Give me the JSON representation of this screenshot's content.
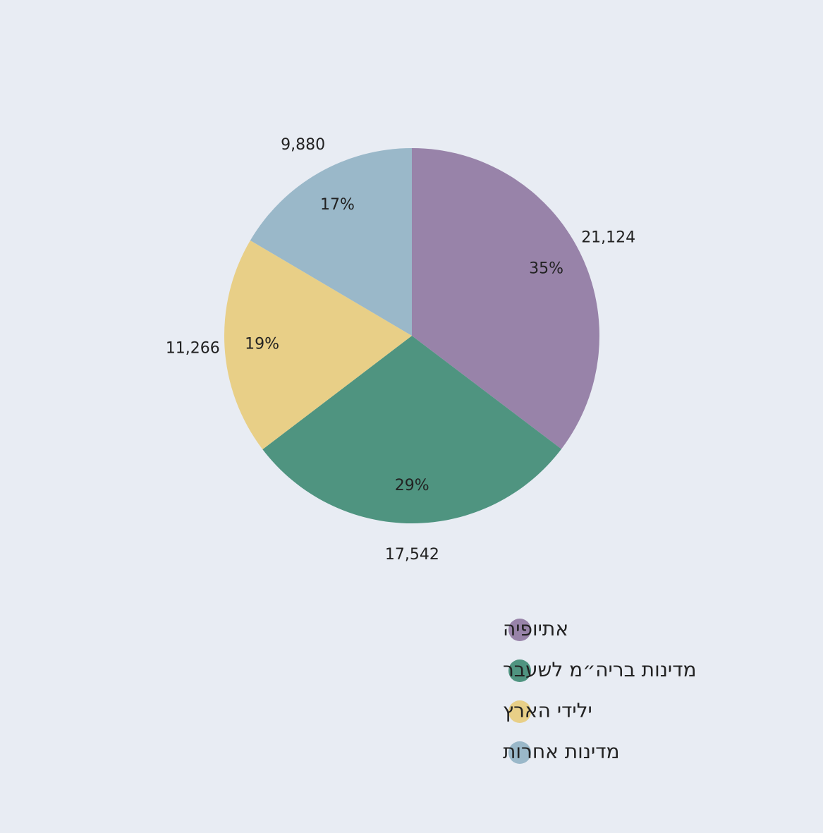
{
  "chart_data": {
    "type": "pie",
    "categories": [
      "אתיופיה",
      "מדינות בריה״מ לשעבר",
      "ילידי הארץ",
      "מדינות אחרות"
    ],
    "values": [
      21124,
      17542,
      11266,
      9880
    ],
    "value_labels": [
      "21,124",
      "17,542",
      "11,266",
      "9,880"
    ],
    "percent_labels": [
      "35%",
      "29%",
      "19%",
      "17%"
    ],
    "colors": [
      "#9883a9",
      "#4f9480",
      "#e8cf87",
      "#9ab8c9"
    ],
    "legend": "bottom"
  }
}
